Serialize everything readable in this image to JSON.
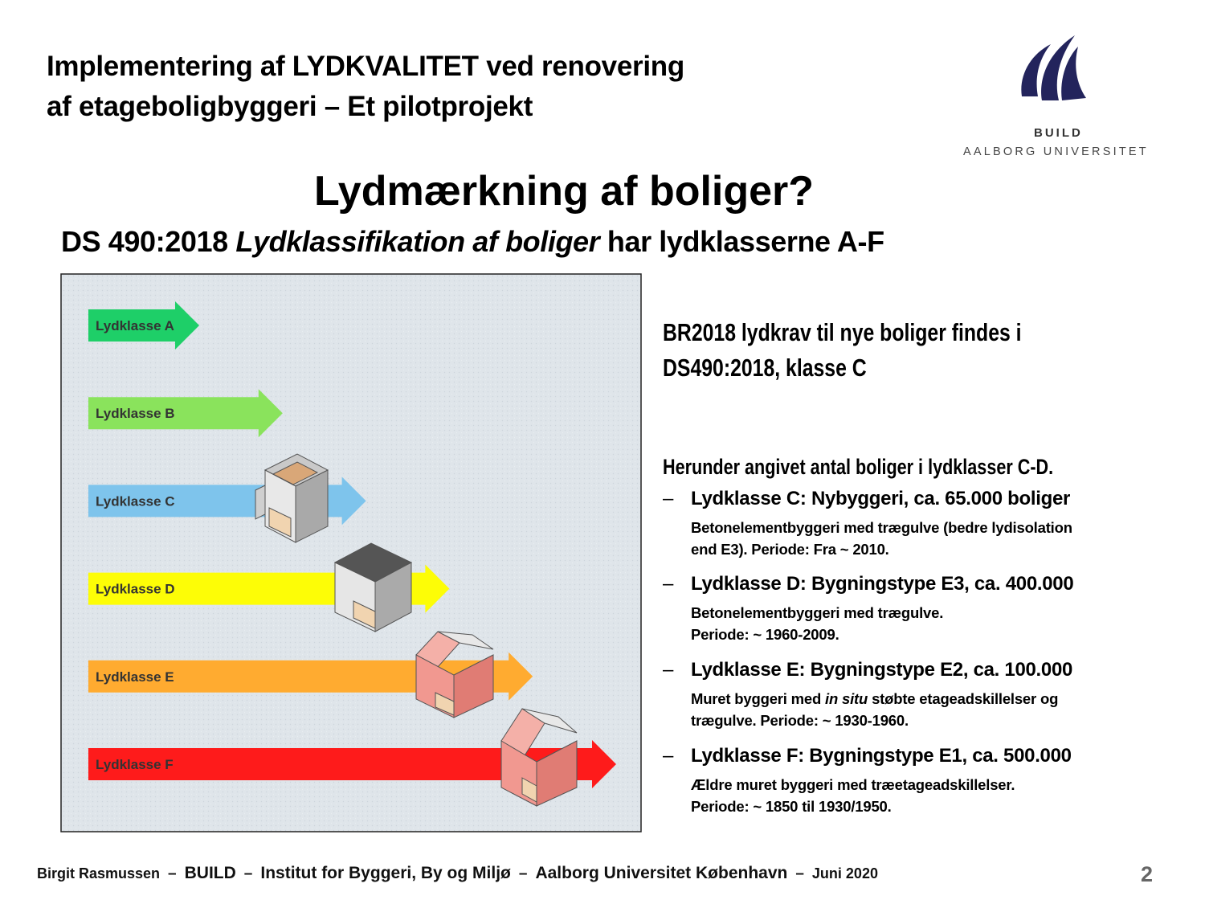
{
  "header": {
    "title_lines": [
      "Implementering af LYDKVALITET ved renovering",
      "af etageboligbyggeri – Et  pilotprojekt"
    ],
    "logo": {
      "name": "BUILD",
      "university": "AALBORG UNIVERSITET"
    }
  },
  "heading": "Lydmærkning af boliger?",
  "subheading": {
    "before": "DS 490:2018 ",
    "italic": "Lydklassifikation af boliger",
    "after": " har lydklasserne A-F"
  },
  "figure": {
    "arrows": [
      {
        "label": "Lydklasse A",
        "color": "#1ecf68"
      },
      {
        "label": "Lydklasse B",
        "color": "#8ae35c"
      },
      {
        "label": "Lydklasse C",
        "color": "#7ec4ec"
      },
      {
        "label": "Lydklasse D",
        "color": "#fdfd06"
      },
      {
        "label": "Lydklasse E",
        "color": "#ffab30"
      },
      {
        "label": "Lydklasse F",
        "color": "#fe1b1b"
      }
    ]
  },
  "right": {
    "intro_lines": [
      "BR2018 lydkrav til nye boliger findes i",
      "DS490:2018, klasse C"
    ],
    "list_intro": "Herunder angivet antal boliger i lydklasser C-D.",
    "bullet": "–",
    "items": [
      {
        "title": "Lydklasse C: Nybyggeri, ca. 65.000 boliger",
        "lines": [
          [
            "Betonelementbyggeri med trægulve (bedre lydisolation"
          ],
          [
            "end E3). Periode: Fra ~ 2010."
          ]
        ]
      },
      {
        "title": "Lydklasse D: Bygningstype E3, ca. 400.000",
        "lines": [
          [
            "Betonelementbyggeri med trægulve."
          ],
          [
            "Periode: ~ 1960-2009."
          ]
        ]
      },
      {
        "title": "Lydklasse E: Bygningstype E2, ca. 100.000",
        "lines": [
          [
            "Muret byggeri med ",
            "in situ",
            " støbte etageadskillelser og"
          ],
          [
            "trægulve. Periode: ~ 1930-1960."
          ]
        ]
      },
      {
        "title": "Lydklasse F: Bygningstype E1, ca. 500.000",
        "lines": [
          [
            "Ældre muret byggeri med træetageadskillelser."
          ],
          [
            "Periode: ~ 1850 til 1930/1950."
          ]
        ]
      }
    ]
  },
  "footer": {
    "separator": "–",
    "parts": [
      "Birgit Rasmussen",
      "BUILD",
      "Institut for Byggeri, By og Miljø",
      "Aalborg Universitet København",
      "Juni 2020"
    ],
    "page_number": "2"
  }
}
